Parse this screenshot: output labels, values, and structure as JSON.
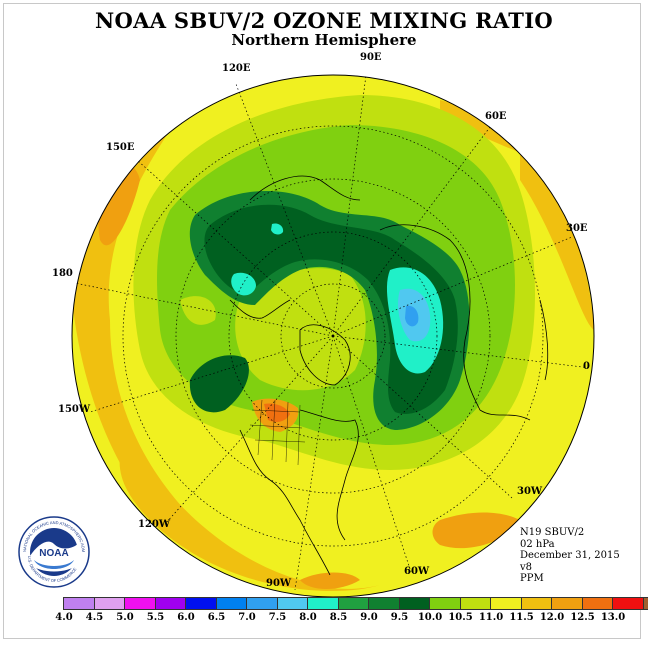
{
  "title": "NOAA SBUV/2 OZONE MIXING RATIO",
  "subtitle": "Northern Hemisphere",
  "longitude_labels": [
    "90E",
    "60E",
    "30E",
    "0",
    "30W",
    "60W",
    "90W",
    "120W",
    "150W",
    "180",
    "150E",
    "120E"
  ],
  "info": {
    "instrument": "N19 SBUV/2",
    "level": "02 hPa",
    "date": "December 31, 2015",
    "version": "v8",
    "units": "PPM"
  },
  "colorbar": {
    "ticks": [
      "4.0",
      "4.5",
      "5.0",
      "5.5",
      "6.0",
      "6.5",
      "7.0",
      "7.5",
      "8.0",
      "8.5",
      "9.0",
      "9.5",
      "10.0",
      "10.5",
      "11.0",
      "11.5",
      "12.0",
      "12.5",
      "13.0"
    ],
    "colors": [
      "#c080f0",
      "#e0a0f0",
      "#f010f0",
      "#a000f0",
      "#0010f0",
      "#0080f0",
      "#30a0f0",
      "#50c8f0",
      "#20f0c8",
      "#20a040",
      "#108030",
      "#006020",
      "#80d010",
      "#c0e010",
      "#f0f020",
      "#f0c010",
      "#f0a010",
      "#f07010",
      "#f01010",
      "#a06030"
    ]
  },
  "logo": {
    "text": "NOAA",
    "ring_text_top": "NATIONAL OCEANIC AND ATMOSPHERIC ADMINISTRATION",
    "ring_text_bottom": "U.S. DEPARTMENT OF COMMERCE"
  },
  "map": {
    "projection": "north-polar-stereographic",
    "field": "ozone mixing ratio (ppm)",
    "background_color": "#f0f020",
    "outer_color": "#f0c010",
    "low_center_color": "#20f0c8"
  }
}
